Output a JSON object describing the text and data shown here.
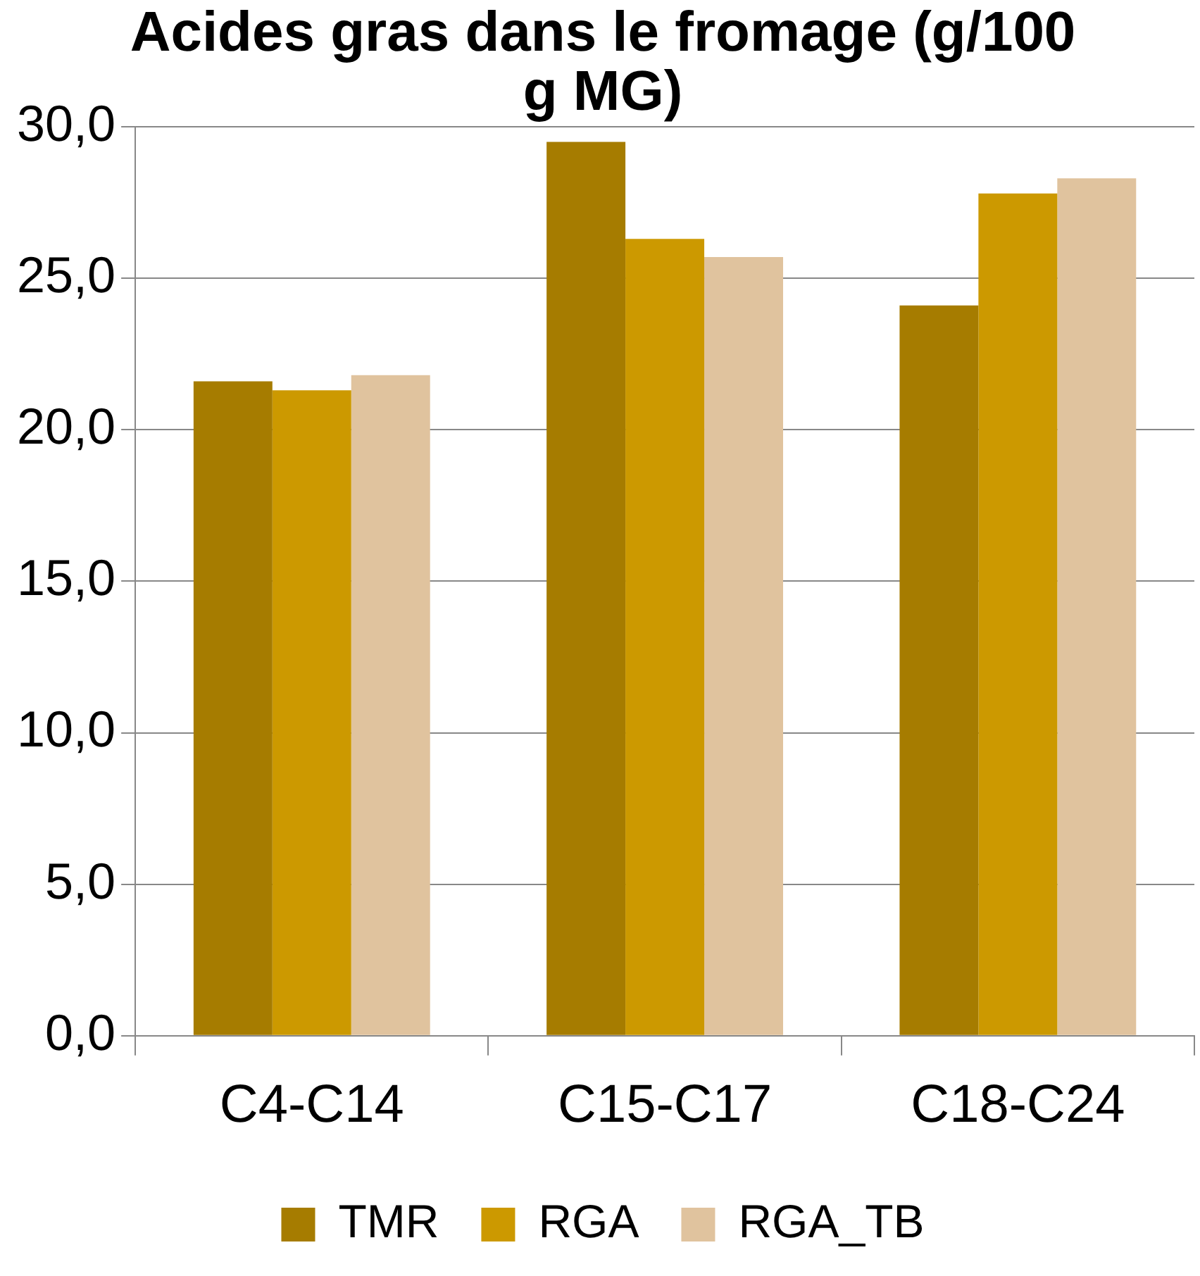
{
  "chart_data": {
    "type": "bar",
    "title": "Acides gras dans le fromage (g/100 g MG)",
    "categories": [
      "C4-C14",
      "C15-C17",
      "C18-C24"
    ],
    "series": [
      {
        "name": "TMR",
        "color": "#a67c00",
        "values": [
          21.6,
          29.5,
          24.1
        ]
      },
      {
        "name": "RGA",
        "color": "#cc9900",
        "values": [
          21.3,
          26.3,
          27.8
        ]
      },
      {
        "name": "RGA_TB",
        "color": "#e0c39e",
        "values": [
          21.8,
          25.7,
          28.3
        ]
      }
    ],
    "ylim": [
      0,
      30
    ],
    "yticks": [
      {
        "value": 0,
        "label": "0,0"
      },
      {
        "value": 5,
        "label": "5,0"
      },
      {
        "value": 10,
        "label": "10,0"
      },
      {
        "value": 15,
        "label": "15,0"
      },
      {
        "value": 20,
        "label": "20,0"
      },
      {
        "value": 25,
        "label": "25,0"
      },
      {
        "value": 30,
        "label": "30,0"
      }
    ],
    "grid": "y",
    "legend": "bottom"
  }
}
